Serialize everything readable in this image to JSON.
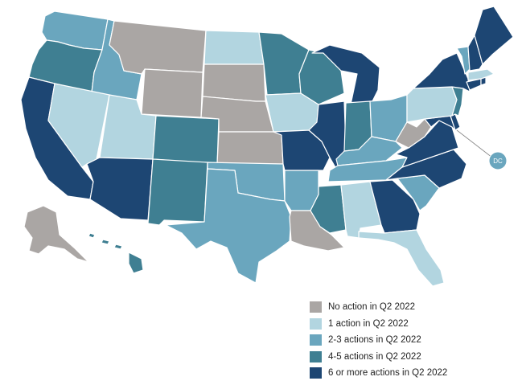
{
  "colors": {
    "none": "#aaa6a4",
    "one": "#b2d5e0",
    "two_three": "#6aa6be",
    "four_five": "#3f7f92",
    "six_plus": "#1d4673"
  },
  "legend": [
    {
      "key": "none",
      "label": "No action in Q2 2022"
    },
    {
      "key": "one",
      "label": "1 action in Q2 2022"
    },
    {
      "key": "two_three",
      "label": "2-3 actions in Q2 2022"
    },
    {
      "key": "four_five",
      "label": "4-5 actions in Q2 2022"
    },
    {
      "key": "six_plus",
      "label": "6 or more actions in Q2 2022"
    }
  ],
  "dc_label": "DC",
  "states": {
    "WA": "two_three",
    "OR": "four_five",
    "CA": "six_plus",
    "ID": "two_three",
    "NV": "one",
    "MT": "none",
    "WY": "none",
    "UT": "one",
    "AZ": "six_plus",
    "CO": "four_five",
    "NM": "four_five",
    "ND": "one",
    "SD": "none",
    "NE": "none",
    "KS": "none",
    "OK": "two_three",
    "TX": "two_three",
    "MN": "four_five",
    "IA": "one",
    "MO": "six_plus",
    "AR": "two_three",
    "LA": "none",
    "WI": "four_five",
    "IL": "six_plus",
    "MI": "six_plus",
    "IN": "four_five",
    "OH": "two_three",
    "KY": "two_three",
    "TN": "two_three",
    "MS": "four_five",
    "AL": "one",
    "GA": "six_plus",
    "FL": "one",
    "SC": "two_three",
    "NC": "six_plus",
    "VA": "six_plus",
    "WV": "none",
    "MD": "six_plus",
    "DE": "six_plus",
    "PA": "one",
    "NJ": "four_five",
    "NY": "six_plus",
    "CT": "six_plus",
    "RI": "six_plus",
    "MA": "one",
    "VT": "two_three",
    "NH": "six_plus",
    "ME": "six_plus",
    "AK": "none",
    "HI": "four_five",
    "DC": "two_three"
  }
}
